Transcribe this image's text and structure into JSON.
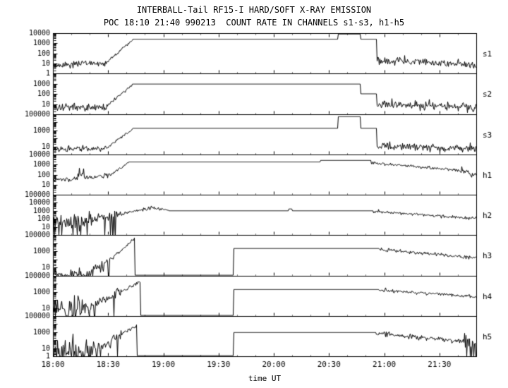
{
  "header": {
    "title": "INTERBALL-Tail RF15-I HARD/SOFT X-RAY EMISSION",
    "subtitle": "POC 18:10 21:40 990213  COUNT RATE IN CHANNELS s1-s3, h1-h5"
  },
  "colors": {
    "line": "#000000",
    "background": "#ffffff"
  },
  "chart_data": {
    "type": "line",
    "title": "INTERBALL-Tail RF15-I HARD/SOFT X-RAY EMISSION",
    "subtitle": "POC 18:10 21:40 990213  COUNT RATE IN CHANNELS s1-s3, h1-h5",
    "grid": false,
    "x_axis": {
      "label": "time UT",
      "start_hour": 18.0,
      "end_hour": 21.8333,
      "major_tick_minutes": 30,
      "minor_tick_minutes": 10,
      "ticks": [
        {
          "hour": 18.0,
          "label": "18:00"
        },
        {
          "hour": 18.5,
          "label": "18:30"
        },
        {
          "hour": 19.0,
          "label": "19:00"
        },
        {
          "hour": 19.5,
          "label": "19:30"
        },
        {
          "hour": 20.0,
          "label": "20:00"
        },
        {
          "hour": 20.5,
          "label": "20:30"
        },
        {
          "hour": 21.0,
          "label": "21:00"
        },
        {
          "hour": 21.5,
          "label": "21:30"
        }
      ]
    },
    "y_scale": "log",
    "panels": [
      {
        "label": "s1",
        "log_range": [
          0,
          4
        ],
        "y_tick_labels": [
          {
            "exp": 4,
            "label": "10000"
          },
          {
            "exp": 3,
            "label": "1000"
          },
          {
            "exp": 2,
            "label": "100"
          },
          {
            "exp": 1,
            "label": "10"
          },
          {
            "exp": 0,
            "label": "1"
          }
        ],
        "segments": [
          {
            "t0": 18.0,
            "t1": 18.25,
            "type": "noise",
            "v0": 7,
            "v1": 7,
            "sigma": 0.18,
            "dropout": 0
          },
          {
            "t0": 18.25,
            "t1": 18.35,
            "type": "noise",
            "v0": 12,
            "v1": 12,
            "sigma": 0.15,
            "dropout": 0
          },
          {
            "t0": 18.35,
            "t1": 18.48,
            "type": "noise",
            "v0": 9,
            "v1": 9,
            "sigma": 0.15,
            "dropout": 0
          },
          {
            "t0": 18.48,
            "t1": 18.72,
            "type": "noise",
            "v0": 12,
            "v1": 2200,
            "sigma": 0.07,
            "dropout": 0
          },
          {
            "t0": 18.72,
            "t1": 20.58,
            "type": "flat",
            "v0": 2500,
            "v1": 2500
          },
          {
            "t0": 20.58,
            "t1": 20.78,
            "type": "flat",
            "v0": 8000,
            "v1": 8000
          },
          {
            "t0": 20.78,
            "t1": 20.93,
            "type": "flat",
            "v0": 2500,
            "v1": 2500
          },
          {
            "t0": 20.93,
            "t1": 21.8333,
            "type": "noise",
            "v0": 20,
            "v1": 8,
            "sigma": 0.2,
            "dropout": 0
          }
        ]
      },
      {
        "label": "s2",
        "log_range": [
          0,
          4
        ],
        "y_tick_labels": [
          {
            "exp": 3,
            "label": "1000"
          },
          {
            "exp": 2,
            "label": "100"
          },
          {
            "exp": 1,
            "label": "10"
          }
        ],
        "segments": [
          {
            "t0": 18.0,
            "t1": 18.48,
            "type": "noise",
            "v0": 5,
            "v1": 5,
            "sigma": 0.2,
            "dropout": 0
          },
          {
            "t0": 18.48,
            "t1": 18.72,
            "type": "noise",
            "v0": 6,
            "v1": 800,
            "sigma": 0.07,
            "dropout": 0
          },
          {
            "t0": 18.72,
            "t1": 20.78,
            "type": "flat",
            "v0": 900,
            "v1": 900
          },
          {
            "t0": 20.78,
            "t1": 20.93,
            "type": "flat",
            "v0": 100,
            "v1": 100
          },
          {
            "t0": 20.93,
            "t1": 21.8333,
            "type": "noise",
            "v0": 10,
            "v1": 5,
            "sigma": 0.2,
            "dropout": 0
          }
        ]
      },
      {
        "label": "s3",
        "log_range": [
          0,
          5
        ],
        "y_tick_labels": [
          {
            "exp": 5,
            "label": "100000"
          },
          {
            "exp": 3,
            "label": "1000"
          },
          {
            "exp": 1,
            "label": "10"
          }
        ],
        "segments": [
          {
            "t0": 18.0,
            "t1": 18.48,
            "type": "noise",
            "v0": 5,
            "v1": 5,
            "sigma": 0.22,
            "dropout": 0
          },
          {
            "t0": 18.48,
            "t1": 18.72,
            "type": "noise",
            "v0": 6,
            "v1": 1500,
            "sigma": 0.07,
            "dropout": 0
          },
          {
            "t0": 18.72,
            "t1": 20.58,
            "type": "flat",
            "v0": 1800,
            "v1": 1800
          },
          {
            "t0": 20.58,
            "t1": 20.78,
            "type": "flat",
            "v0": 50000,
            "v1": 50000
          },
          {
            "t0": 20.78,
            "t1": 20.93,
            "type": "flat",
            "v0": 1800,
            "v1": 1800
          },
          {
            "t0": 20.93,
            "t1": 21.8333,
            "type": "noise",
            "v0": 12,
            "v1": 5,
            "sigma": 0.25,
            "dropout": 0
          }
        ]
      },
      {
        "label": "h1",
        "log_range": [
          0,
          4
        ],
        "y_tick_labels": [
          {
            "exp": 4,
            "label": "10000"
          },
          {
            "exp": 3,
            "label": "1000"
          },
          {
            "exp": 2,
            "label": "100"
          },
          {
            "exp": 1,
            "label": "10"
          }
        ],
        "segments": [
          {
            "t0": 18.0,
            "t1": 18.22,
            "type": "noise",
            "v0": 30,
            "v1": 35,
            "sigma": 0.1,
            "dropout": 0
          },
          {
            "t0": 18.22,
            "t1": 18.28,
            "type": "noise",
            "v0": 140,
            "v1": 140,
            "sigma": 0.18,
            "dropout": 0
          },
          {
            "t0": 18.28,
            "t1": 18.52,
            "type": "noise",
            "v0": 45,
            "v1": 90,
            "sigma": 0.12,
            "dropout": 0
          },
          {
            "t0": 18.52,
            "t1": 18.68,
            "type": "noise",
            "v0": 100,
            "v1": 1600,
            "sigma": 0.06,
            "dropout": 0
          },
          {
            "t0": 18.68,
            "t1": 20.42,
            "type": "flat",
            "v0": 1800,
            "v1": 1800
          },
          {
            "t0": 20.42,
            "t1": 20.88,
            "type": "flat",
            "v0": 2600,
            "v1": 2600
          },
          {
            "t0": 20.88,
            "t1": 21.68,
            "type": "noise",
            "v0": 1500,
            "v1": 260,
            "sigma": 0.08,
            "dropout": 0
          },
          {
            "t0": 21.68,
            "t1": 21.8333,
            "type": "noise",
            "v0": 230,
            "v1": 110,
            "sigma": 0.18,
            "dropout": 0
          }
        ]
      },
      {
        "label": "h2",
        "log_range": [
          0,
          5
        ],
        "y_tick_labels": [
          {
            "exp": 5,
            "label": "100000"
          },
          {
            "exp": 4,
            "label": "10000"
          },
          {
            "exp": 3,
            "label": "1000"
          },
          {
            "exp": 2,
            "label": "100"
          },
          {
            "exp": 1,
            "label": "10"
          }
        ],
        "segments": [
          {
            "t0": 18.0,
            "t1": 18.35,
            "type": "noise",
            "v0": 60,
            "v1": 60,
            "sigma": 0.55,
            "dropout": 0.22
          },
          {
            "t0": 18.35,
            "t1": 18.62,
            "type": "noise",
            "v0": 80,
            "v1": 500,
            "sigma": 0.25,
            "dropout": 0.05
          },
          {
            "t0": 18.62,
            "t1": 18.92,
            "type": "noise",
            "v0": 500,
            "v1": 2500,
            "sigma": 0.12,
            "dropout": 0
          },
          {
            "t0": 18.92,
            "t1": 19.05,
            "type": "noise",
            "v0": 2200,
            "v1": 1100,
            "sigma": 0.1,
            "dropout": 0
          },
          {
            "t0": 19.05,
            "t1": 20.13,
            "type": "flat",
            "v0": 1000,
            "v1": 1000
          },
          {
            "t0": 20.13,
            "t1": 20.16,
            "type": "flat",
            "v0": 1700,
            "v1": 1700
          },
          {
            "t0": 20.16,
            "t1": 20.9,
            "type": "flat",
            "v0": 1000,
            "v1": 1000
          },
          {
            "t0": 20.9,
            "t1": 21.8333,
            "type": "noise",
            "v0": 900,
            "v1": 100,
            "sigma": 0.1,
            "dropout": 0
          }
        ]
      },
      {
        "label": "h3",
        "log_range": [
          0,
          5
        ],
        "y_tick_labels": [
          {
            "exp": 5,
            "label": "100000"
          },
          {
            "exp": 3,
            "label": "1000"
          },
          {
            "exp": 1,
            "label": "10"
          }
        ],
        "segments": [
          {
            "t0": 18.0,
            "t1": 18.35,
            "type": "noise",
            "v0": 1.5,
            "v1": 1.5,
            "sigma": 0.45,
            "dropout": 0
          },
          {
            "t0": 18.35,
            "t1": 18.56,
            "type": "noise",
            "v0": 3,
            "v1": 300,
            "sigma": 0.35,
            "dropout": 0.1
          },
          {
            "t0": 18.56,
            "t1": 18.74,
            "type": "noise",
            "v0": 300,
            "v1": 40000,
            "sigma": 0.1,
            "dropout": 0
          },
          {
            "t0": 18.74,
            "t1": 19.63,
            "type": "flat",
            "v0": 1.2,
            "v1": 1.2
          },
          {
            "t0": 19.63,
            "t1": 20.95,
            "type": "flat",
            "v0": 2200,
            "v1": 2200
          },
          {
            "t0": 20.95,
            "t1": 21.8333,
            "type": "noise",
            "v0": 1800,
            "v1": 150,
            "sigma": 0.1,
            "dropout": 0
          }
        ]
      },
      {
        "label": "h4",
        "log_range": [
          0,
          5
        ],
        "y_tick_labels": [
          {
            "exp": 5,
            "label": "100000"
          },
          {
            "exp": 3,
            "label": "1000"
          },
          {
            "exp": 1,
            "label": "10"
          }
        ],
        "segments": [
          {
            "t0": 18.0,
            "t1": 18.35,
            "type": "noise",
            "v0": 8,
            "v1": 8,
            "sigma": 0.7,
            "dropout": 0.18
          },
          {
            "t0": 18.35,
            "t1": 18.62,
            "type": "noise",
            "v0": 20,
            "v1": 1200,
            "sigma": 0.3,
            "dropout": 0.05
          },
          {
            "t0": 18.62,
            "t1": 18.79,
            "type": "noise",
            "v0": 1200,
            "v1": 20000,
            "sigma": 0.1,
            "dropout": 0
          },
          {
            "t0": 18.79,
            "t1": 19.63,
            "type": "flat",
            "v0": 1.2,
            "v1": 1.2
          },
          {
            "t0": 19.63,
            "t1": 20.95,
            "type": "flat",
            "v0": 2000,
            "v1": 2000
          },
          {
            "t0": 20.95,
            "t1": 21.8333,
            "type": "noise",
            "v0": 1800,
            "v1": 250,
            "sigma": 0.1,
            "dropout": 0
          }
        ]
      },
      {
        "label": "h5",
        "log_range": [
          0,
          5
        ],
        "y_tick_labels": [
          {
            "exp": 5,
            "label": "100000"
          },
          {
            "exp": 3,
            "label": "1000"
          },
          {
            "exp": 1,
            "label": "10"
          },
          {
            "exp": 0,
            "label": "1"
          }
        ],
        "segments": [
          {
            "t0": 18.0,
            "t1": 18.4,
            "type": "noise",
            "v0": 5,
            "v1": 5,
            "sigma": 0.75,
            "dropout": 0.25
          },
          {
            "t0": 18.4,
            "t1": 18.62,
            "type": "noise",
            "v0": 10,
            "v1": 600,
            "sigma": 0.35,
            "dropout": 0.08
          },
          {
            "t0": 18.62,
            "t1": 18.76,
            "type": "noise",
            "v0": 600,
            "v1": 6000,
            "sigma": 0.12,
            "dropout": 0
          },
          {
            "t0": 18.76,
            "t1": 19.63,
            "type": "flat",
            "v0": 1.2,
            "v1": 1.2
          },
          {
            "t0": 19.63,
            "t1": 20.92,
            "type": "flat",
            "v0": 900,
            "v1": 900
          },
          {
            "t0": 20.92,
            "t1": 21.72,
            "type": "noise",
            "v0": 700,
            "v1": 70,
            "sigma": 0.15,
            "dropout": 0
          },
          {
            "t0": 21.72,
            "t1": 21.8333,
            "type": "noise",
            "v0": 55,
            "v1": 40,
            "sigma": 0.5,
            "dropout": 0.3
          }
        ]
      }
    ]
  }
}
